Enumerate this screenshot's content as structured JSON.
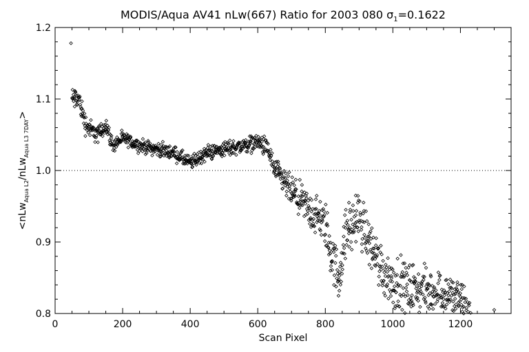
{
  "chart_data": {
    "type": "scatter",
    "title_main": "MODIS/Aqua AV41 nLw(667) Ratio for 2003 080 ",
    "title_sigma_symbol": "σ",
    "title_sigma_sub": "1",
    "title_sigma_value": "=0.1622",
    "xlabel": "Scan Pixel",
    "ylabel_parts": {
      "prefix": "<nLw",
      "sub1": "Aqua L2",
      "mid": "/nLw",
      "sub2": "Aqua L3 7DAY",
      "suffix": ">"
    },
    "xlim": [
      0,
      1350
    ],
    "ylim": [
      0.8,
      1.2
    ],
    "xticks": [
      0,
      200,
      400,
      600,
      800,
      1000,
      1200
    ],
    "xtick_labels": [
      "0",
      "200",
      "400",
      "600",
      "800",
      "1000",
      "1200"
    ],
    "yticks": [
      0.8,
      0.9,
      1.0,
      1.1,
      1.2
    ],
    "ytick_labels": [
      "0.8",
      "0.9",
      "1.0",
      "1.1",
      "1.2"
    ],
    "reference_line": 1.0,
    "marker": "diamond",
    "trend": [
      {
        "x": 50,
        "y": 1.1
      },
      {
        "x": 70,
        "y": 1.1
      },
      {
        "x": 90,
        "y": 1.065
      },
      {
        "x": 110,
        "y": 1.055
      },
      {
        "x": 130,
        "y": 1.05
      },
      {
        "x": 150,
        "y": 1.065
      },
      {
        "x": 170,
        "y": 1.035
      },
      {
        "x": 200,
        "y": 1.045
      },
      {
        "x": 250,
        "y": 1.035
      },
      {
        "x": 300,
        "y": 1.03
      },
      {
        "x": 350,
        "y": 1.025
      },
      {
        "x": 400,
        "y": 1.01
      },
      {
        "x": 450,
        "y": 1.025
      },
      {
        "x": 500,
        "y": 1.03
      },
      {
        "x": 560,
        "y": 1.035
      },
      {
        "x": 600,
        "y": 1.04
      },
      {
        "x": 630,
        "y": 1.03
      },
      {
        "x": 650,
        "y": 1.0
      },
      {
        "x": 700,
        "y": 0.97
      },
      {
        "x": 750,
        "y": 0.945
      },
      {
        "x": 800,
        "y": 0.925
      },
      {
        "x": 820,
        "y": 0.88
      },
      {
        "x": 840,
        "y": 0.85
      },
      {
        "x": 860,
        "y": 0.91
      },
      {
        "x": 900,
        "y": 0.935
      },
      {
        "x": 930,
        "y": 0.9
      },
      {
        "x": 970,
        "y": 0.86
      },
      {
        "x": 1000,
        "y": 0.845
      },
      {
        "x": 1050,
        "y": 0.835
      },
      {
        "x": 1100,
        "y": 0.83
      },
      {
        "x": 1150,
        "y": 0.83
      },
      {
        "x": 1200,
        "y": 0.82
      },
      {
        "x": 1230,
        "y": 0.8
      }
    ],
    "spread": [
      {
        "x": 50,
        "y": 0.012
      },
      {
        "x": 200,
        "y": 0.006
      },
      {
        "x": 600,
        "y": 0.008
      },
      {
        "x": 700,
        "y": 0.015
      },
      {
        "x": 800,
        "y": 0.022
      },
      {
        "x": 900,
        "y": 0.025
      },
      {
        "x": 1000,
        "y": 0.025
      },
      {
        "x": 1200,
        "y": 0.02
      }
    ],
    "outliers": [
      {
        "x": 47,
        "y": 1.178
      },
      {
        "x": 1300,
        "y": 0.805
      },
      {
        "x": 1255,
        "y": 0.796
      },
      {
        "x": 1240,
        "y": 0.798
      },
      {
        "x": 1060,
        "y": 0.868
      },
      {
        "x": 890,
        "y": 0.965
      },
      {
        "x": 870,
        "y": 0.955
      },
      {
        "x": 815,
        "y": 0.86
      },
      {
        "x": 940,
        "y": 0.885
      }
    ],
    "colors": {
      "background": "#ffffff",
      "foreground": "#000000"
    }
  }
}
